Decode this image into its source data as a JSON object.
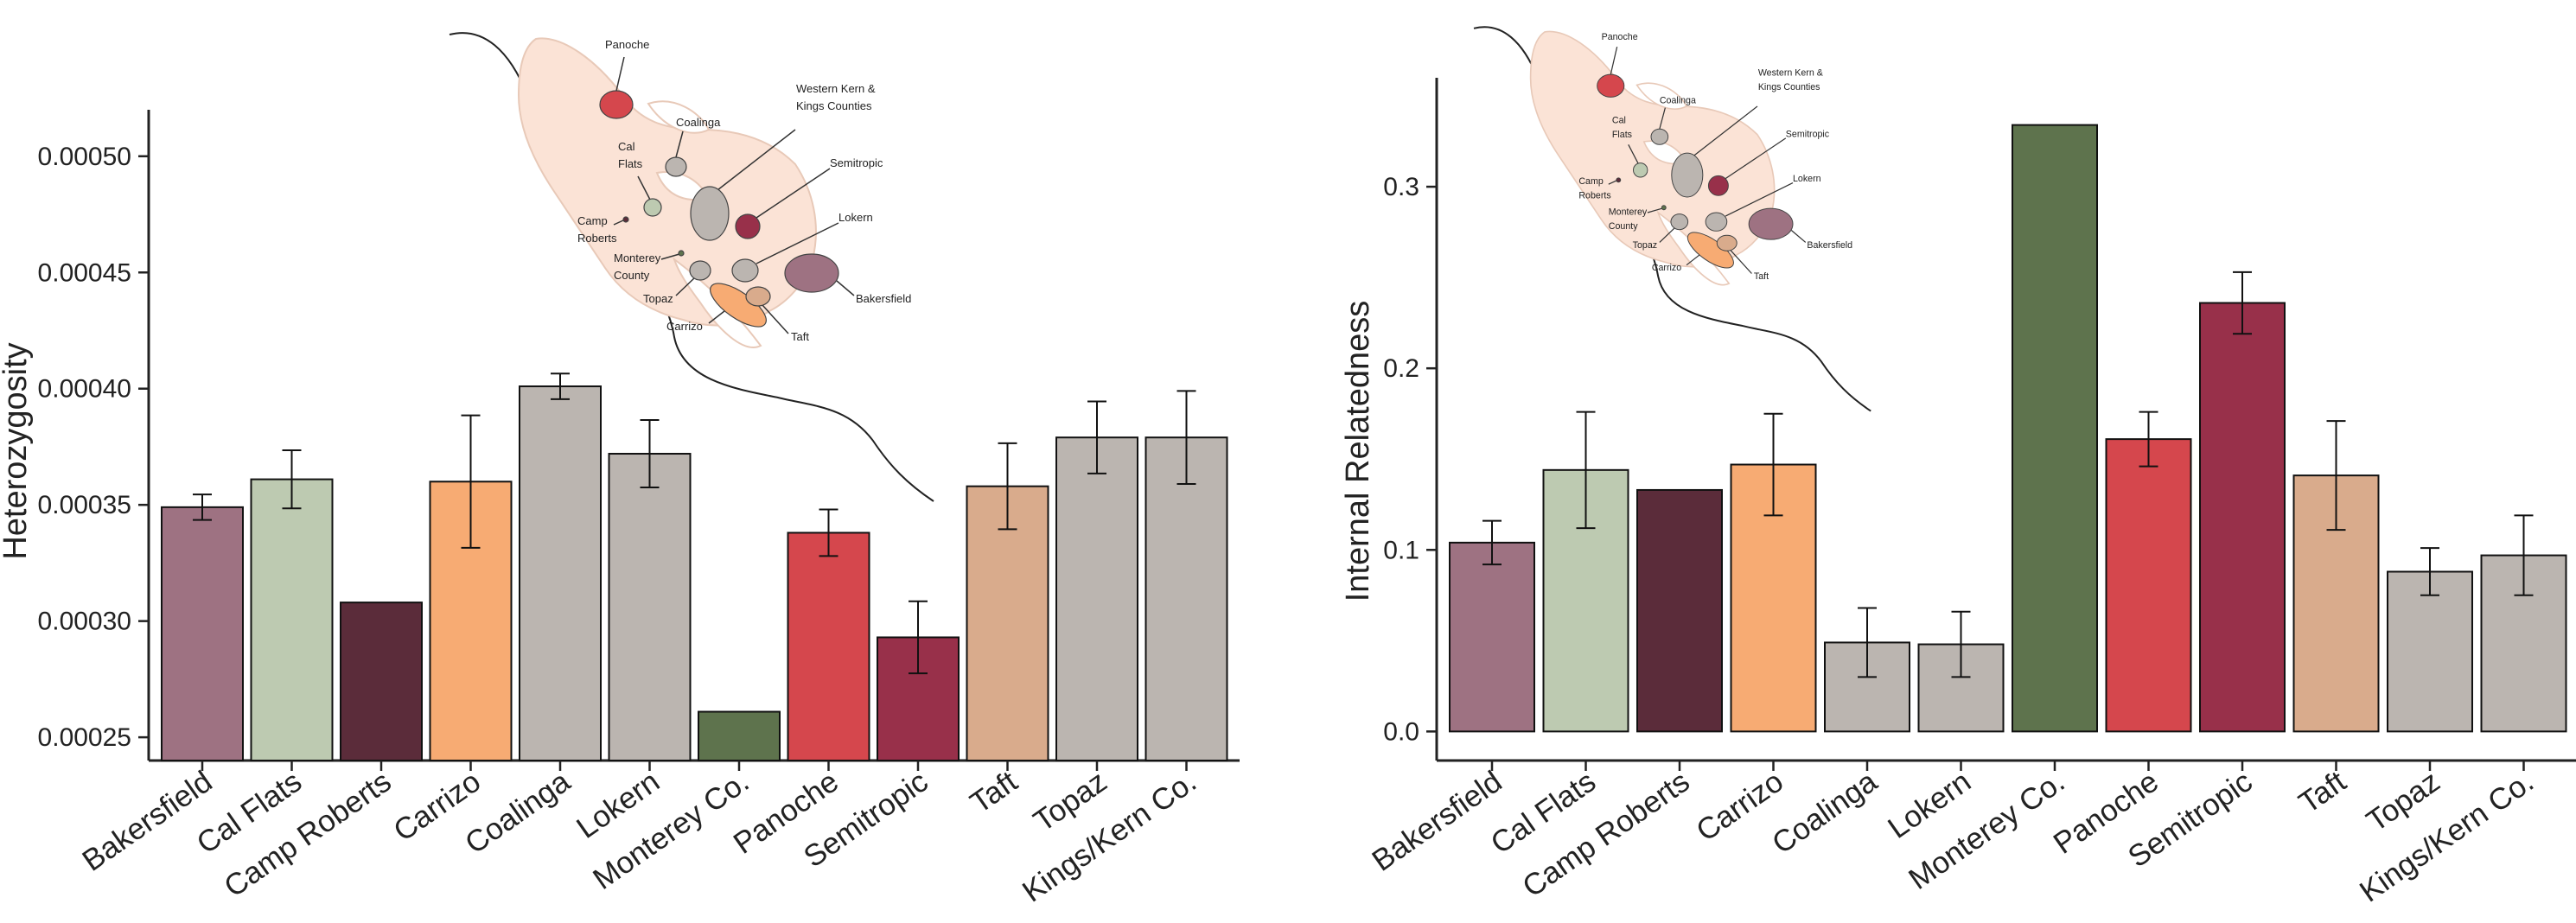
{
  "colors": {
    "Bakersfield": "#9e7282",
    "Cal Flats": "#bdcab1",
    "Camp Roberts": "#5b2c3a",
    "Carrizo": "#f7ab73",
    "Coalinga": "#bbb5b0",
    "Lokern": "#bbb5b0",
    "Monterey Co.": "#5e734d",
    "Panoche": "#d5474d",
    "Semitropic": "#98304a",
    "Taft": "#d9ab8c",
    "Topaz": "#bbb5b0",
    "Kings/Kern Co.": "#bbb5b0",
    "map_fill": "#fbe3d6",
    "map_stroke": "#e8c9b8"
  },
  "chart_data": [
    {
      "type": "bar",
      "ylabel": "Heterozygosity",
      "categories": [
        "Bakersfield",
        "Cal Flats",
        "Camp Roberts",
        "Carrizo",
        "Coalinga",
        "Lokern",
        "Monterey Co.",
        "Panoche",
        "Semitropic",
        "Taft",
        "Topaz",
        "Kings/Kern Co."
      ],
      "values": [
        0.000349,
        0.000361,
        0.000308,
        0.00036,
        0.000401,
        0.000372,
        0.000261,
        0.000338,
        0.000293,
        0.000358,
        0.000379,
        0.000379
      ],
      "errors": [
        5.5e-06,
        1.25e-05,
        null,
        2.85e-05,
        5.5e-06,
        1.45e-05,
        null,
        1e-05,
        1.55e-05,
        1.85e-05,
        1.55e-05,
        2e-05
      ],
      "ylim": [
        0.00024,
        0.00052
      ],
      "yticks": [
        "0.00025",
        "0.00030",
        "0.00035",
        "0.00040",
        "0.00045",
        "0.00050"
      ],
      "grid": false
    },
    {
      "type": "bar",
      "ylabel": "Internal Relatedness",
      "categories": [
        "Bakersfield",
        "Cal Flats",
        "Camp Roberts",
        "Carrizo",
        "Coalinga",
        "Lokern",
        "Monterey Co.",
        "Panoche",
        "Semitropic",
        "Taft",
        "Topaz",
        "Kings/Kern Co."
      ],
      "values": [
        0.104,
        0.144,
        0.133,
        0.147,
        0.049,
        0.048,
        0.334,
        0.161,
        0.236,
        0.141,
        0.088,
        0.097
      ],
      "errors": [
        0.012,
        0.032,
        null,
        0.028,
        0.019,
        0.018,
        null,
        0.015,
        0.017,
        0.03,
        0.013,
        0.022
      ],
      "ylim": [
        -0.016,
        0.36
      ],
      "yticks": [
        "0.0",
        "0.1",
        "0.2",
        "0.3"
      ],
      "grid": false
    }
  ],
  "map": {
    "labels": [
      "Panoche",
      "Coalinga",
      "Western Kern &",
      "Kings Counties",
      "Semitropic",
      "Cal",
      "Flats",
      "Camp",
      "Roberts",
      "Lokern",
      "Monterey",
      "County",
      "Topaz",
      "Bakersfield",
      "Carrizo",
      "Taft"
    ]
  }
}
